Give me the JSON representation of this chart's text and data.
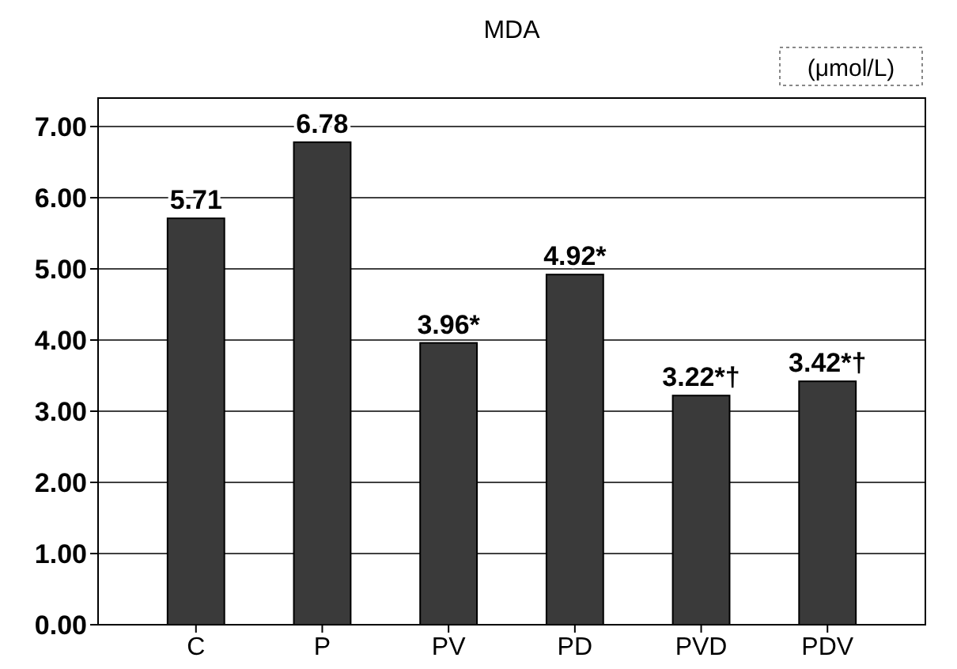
{
  "chart_data": {
    "type": "bar",
    "title": "MDA",
    "ylabel": "(μmol/L)",
    "categories": [
      "C",
      "P",
      "PV",
      "PD",
      "PVD",
      "PDV"
    ],
    "values": [
      5.71,
      6.78,
      3.96,
      4.92,
      3.22,
      3.42
    ],
    "value_labels": [
      "5.71",
      "6.78",
      "3.96*",
      "4.92*",
      "3.22*†",
      "3.42*†"
    ],
    "color": "#3a3a3a",
    "ylim": [
      0,
      7.4
    ],
    "yticks": [
      {
        "value": 0,
        "label": "0.00"
      },
      {
        "value": 1,
        "label": "1.00"
      },
      {
        "value": 2,
        "label": "2.00"
      },
      {
        "value": 3,
        "label": "3.00"
      },
      {
        "value": 4,
        "label": "4.00"
      },
      {
        "value": 5,
        "label": "5.00"
      },
      {
        "value": 6,
        "label": "6.00"
      },
      {
        "value": 7,
        "label": "7.00"
      }
    ],
    "grid": "y"
  }
}
